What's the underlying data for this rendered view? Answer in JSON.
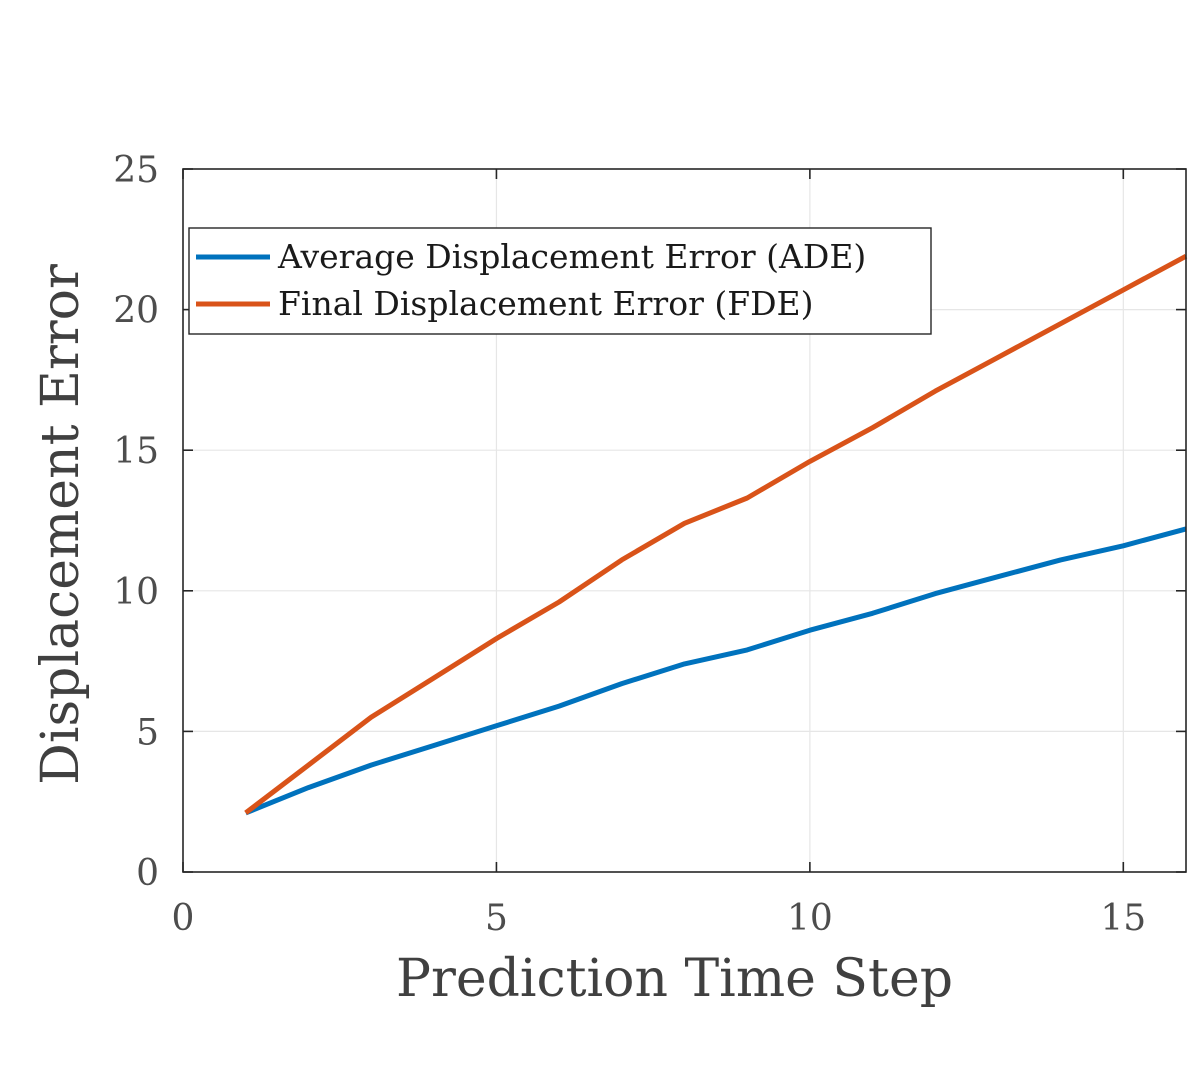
{
  "chart_data": {
    "type": "line",
    "xlabel": "Prediction Time Step",
    "ylabel": "Displacement Error",
    "xlim": [
      0,
      16
    ],
    "ylim": [
      0,
      25
    ],
    "xticks": [
      0,
      5,
      10,
      15
    ],
    "yticks": [
      0,
      5,
      10,
      15,
      20,
      25
    ],
    "grid": true,
    "legend_position": "top-left",
    "x": [
      1,
      2,
      3,
      4,
      5,
      6,
      7,
      8,
      9,
      10,
      11,
      12,
      13,
      14,
      15,
      16
    ],
    "series": [
      {
        "name": "Average Displacement Error (ADE)",
        "color": "#0072BD",
        "values": [
          2.1,
          3.0,
          3.8,
          4.5,
          5.2,
          5.9,
          6.7,
          7.4,
          7.9,
          8.6,
          9.2,
          9.9,
          10.5,
          11.1,
          11.6,
          12.2
        ]
      },
      {
        "name": "Final Displacement Error (FDE)",
        "color": "#D95319",
        "values": [
          2.1,
          3.8,
          5.5,
          6.9,
          8.3,
          9.6,
          11.1,
          12.4,
          13.3,
          14.6,
          15.8,
          17.1,
          18.3,
          19.5,
          20.7,
          21.9
        ]
      }
    ]
  }
}
